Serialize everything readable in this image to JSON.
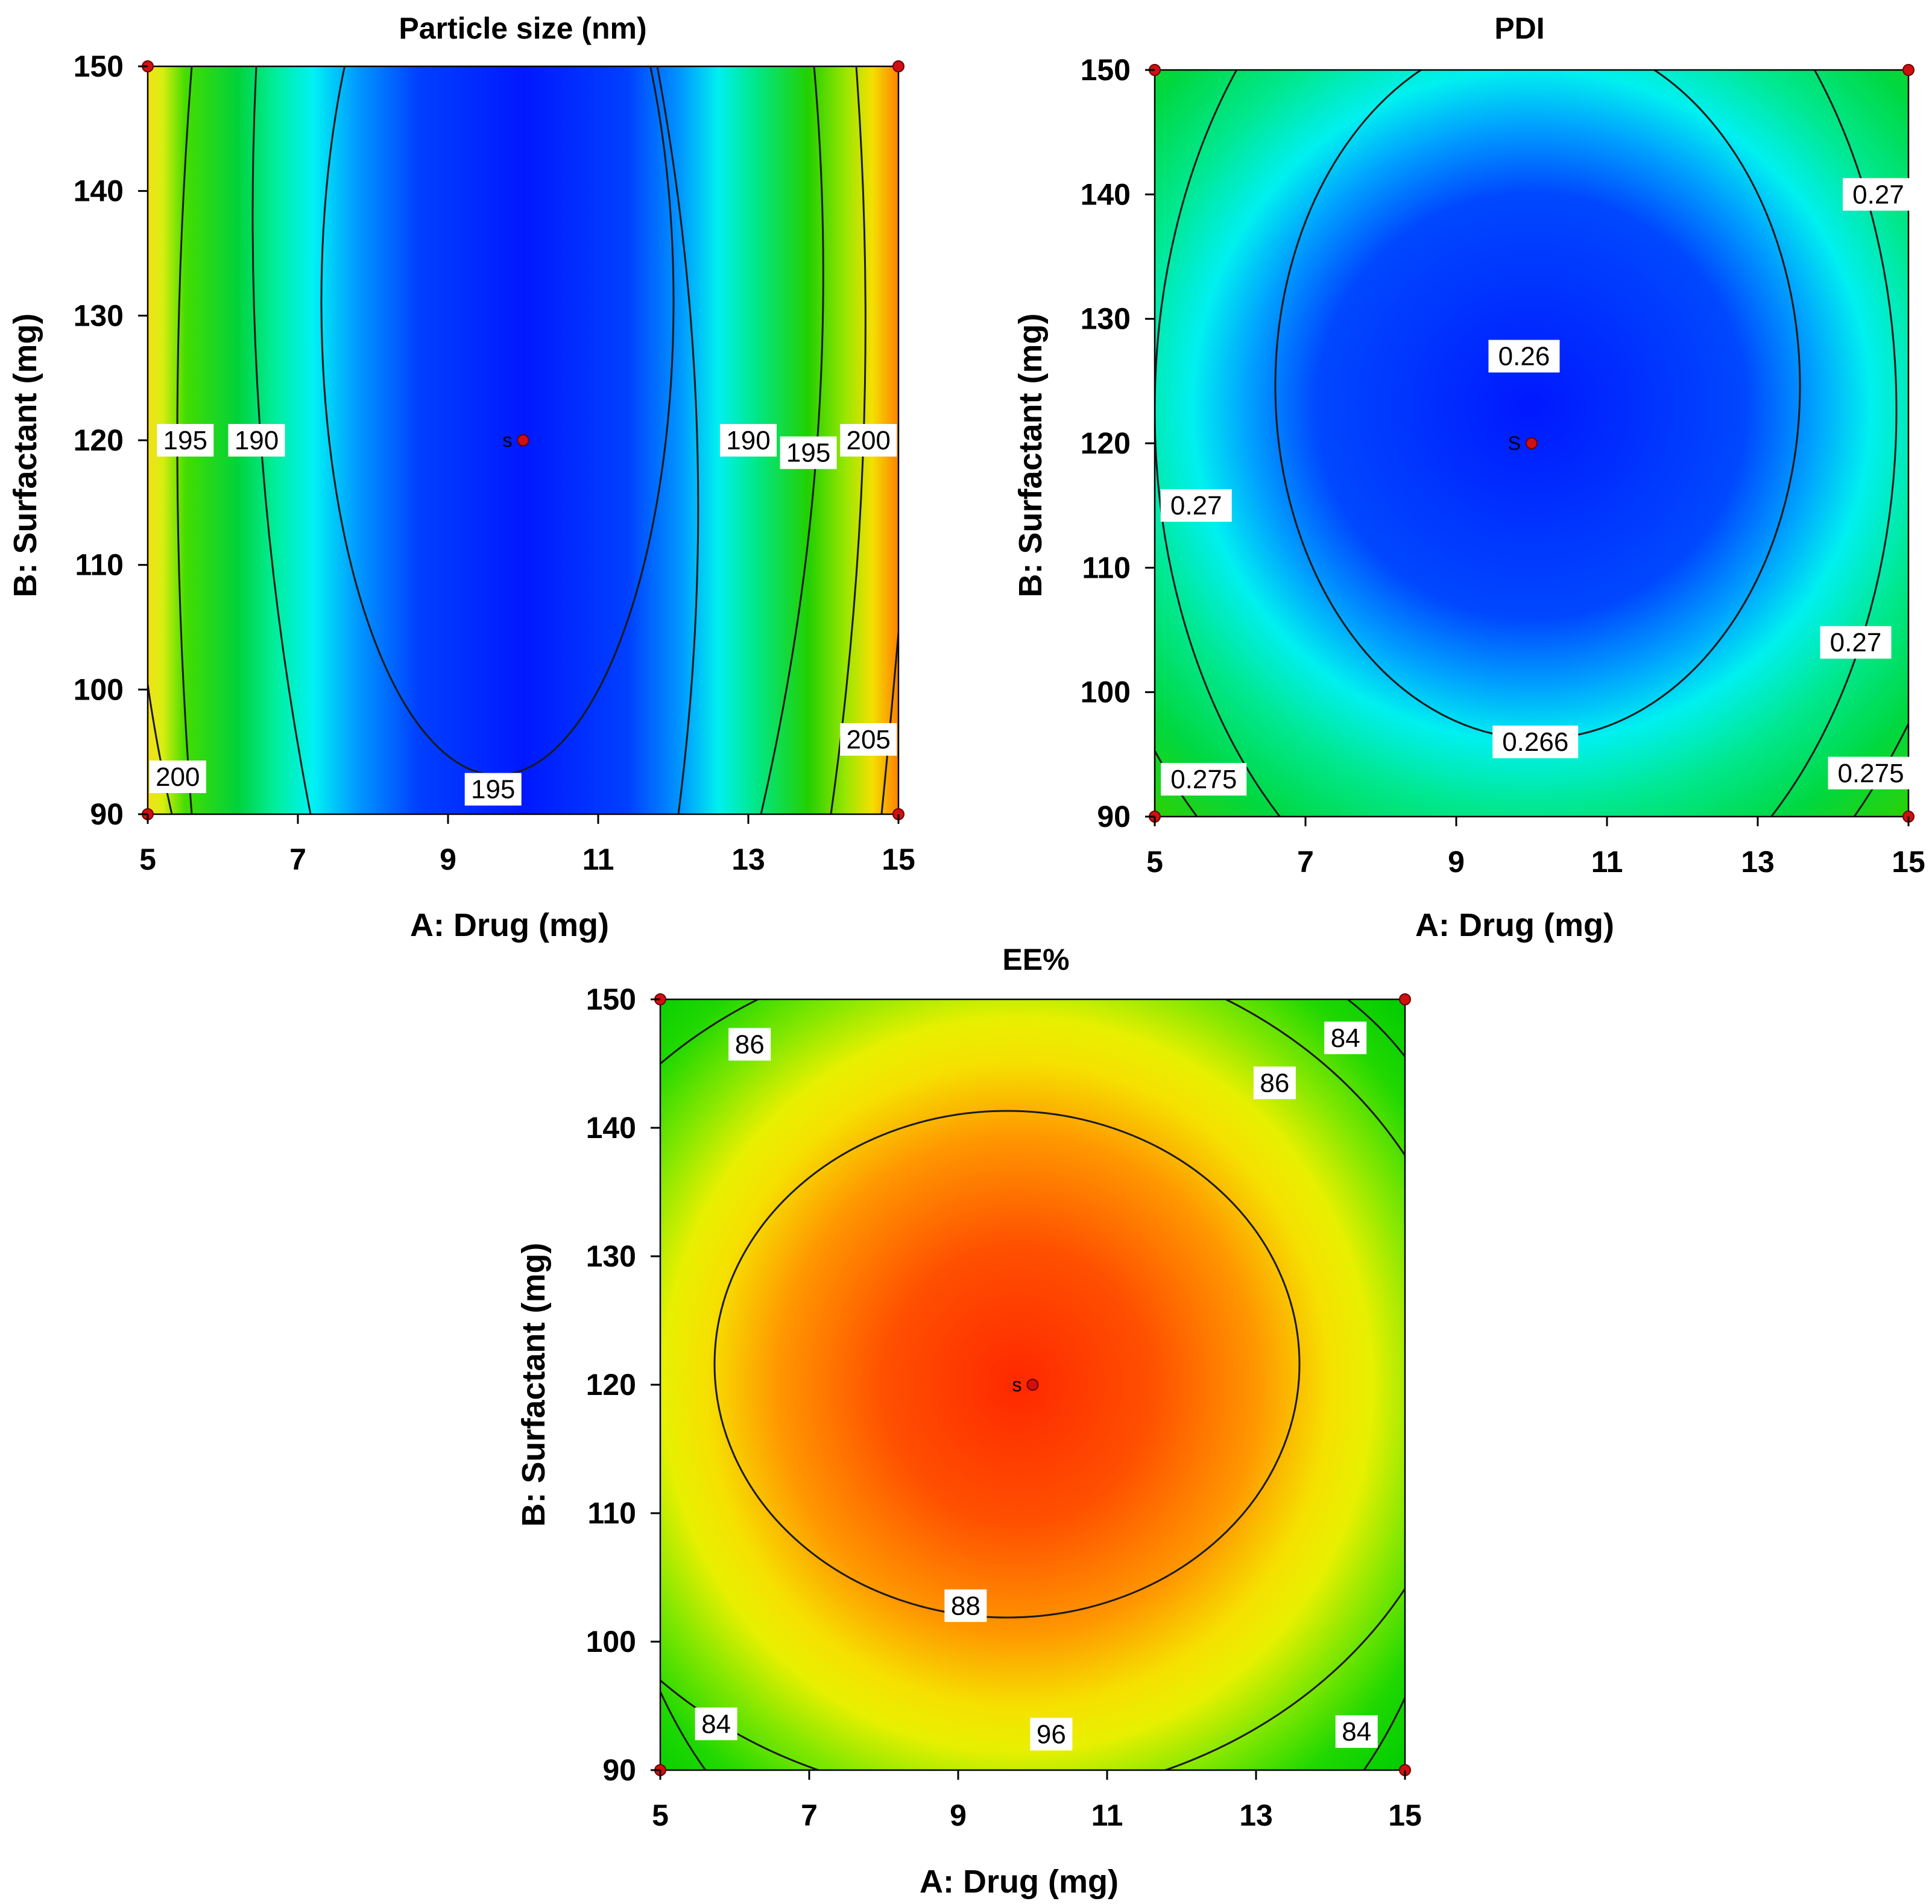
{
  "figure": {
    "chart_data": [
      {
        "type": "contour",
        "title": "Particle size (nm)",
        "xlabel": "A: Drug (mg)",
        "ylabel": "B: Surfactant (mg)",
        "xlim": [
          5,
          15
        ],
        "ylim": [
          90,
          150
        ],
        "xticks": [
          "5",
          "7",
          "9",
          "11",
          "13",
          "15"
        ],
        "yticks": [
          "90",
          "100",
          "110",
          "120",
          "130",
          "140",
          "150"
        ],
        "palette": "blue-center",
        "contour_labels": [
          {
            "text": "195",
            "x": 5.5,
            "y": 120
          },
          {
            "text": "190",
            "x": 6.45,
            "y": 120
          },
          {
            "text": "190",
            "x": 13.0,
            "y": 120
          },
          {
            "text": "195",
            "x": 13.8,
            "y": 119
          },
          {
            "text": "200",
            "x": 14.6,
            "y": 120
          },
          {
            "text": "200",
            "x": 5.4,
            "y": 93
          },
          {
            "text": "195",
            "x": 9.6,
            "y": 92
          },
          {
            "text": "205",
            "x": 14.6,
            "y": 96
          }
        ],
        "design_points": [
          [
            5,
            90
          ],
          [
            15,
            90
          ],
          [
            5,
            150
          ],
          [
            15,
            150
          ],
          [
            10,
            120
          ]
        ],
        "center_label": "s",
        "center_point": [
          10,
          120
        ]
      },
      {
        "type": "contour",
        "title": "PDI",
        "xlabel": "A: Drug (mg)",
        "ylabel": "B: Surfactant (mg)",
        "xlim": [
          5,
          15
        ],
        "ylim": [
          90,
          150
        ],
        "xticks": [
          "5",
          "7",
          "9",
          "11",
          "13",
          "15"
        ],
        "yticks": [
          "90",
          "100",
          "110",
          "120",
          "130",
          "140",
          "150"
        ],
        "palette": "blue-center",
        "contour_labels": [
          {
            "text": "0.27",
            "x": 14.6,
            "y": 140
          },
          {
            "text": "0.26",
            "x": 9.9,
            "y": 127
          },
          {
            "text": "0.27",
            "x": 5.55,
            "y": 115
          },
          {
            "text": "0.27",
            "x": 14.3,
            "y": 104
          },
          {
            "text": "0.266",
            "x": 10.05,
            "y": 96
          },
          {
            "text": "0.275",
            "x": 5.65,
            "y": 93
          },
          {
            "text": "0.275",
            "x": 14.5,
            "y": 93.5
          }
        ],
        "design_points": [
          [
            5,
            90
          ],
          [
            15,
            90
          ],
          [
            5,
            150
          ],
          [
            15,
            150
          ],
          [
            10,
            120
          ]
        ],
        "center_label": "S",
        "center_point": [
          10,
          120
        ]
      },
      {
        "type": "contour",
        "title": "EE%",
        "xlabel": "A: Drug (mg)",
        "ylabel": "B: Surfactant (mg)",
        "xlim": [
          5,
          15
        ],
        "ylim": [
          90,
          150
        ],
        "xticks": [
          "5",
          "7",
          "9",
          "11",
          "13",
          "15"
        ],
        "yticks": [
          "90",
          "100",
          "110",
          "120",
          "130",
          "140",
          "150"
        ],
        "palette": "red-center",
        "contour_labels": [
          {
            "text": "86",
            "x": 6.2,
            "y": 146.5
          },
          {
            "text": "84",
            "x": 14.2,
            "y": 147
          },
          {
            "text": "86",
            "x": 13.25,
            "y": 143.5
          },
          {
            "text": "88",
            "x": 9.1,
            "y": 102.8
          },
          {
            "text": "84",
            "x": 5.75,
            "y": 93.6
          },
          {
            "text": "96",
            "x": 10.25,
            "y": 92.8
          },
          {
            "text": "84",
            "x": 14.35,
            "y": 93
          }
        ],
        "design_points": [
          [
            5,
            90
          ],
          [
            15,
            90
          ],
          [
            5,
            150
          ],
          [
            15,
            150
          ],
          [
            10,
            120
          ]
        ],
        "center_label": "s",
        "center_point": [
          10,
          120
        ]
      }
    ]
  }
}
